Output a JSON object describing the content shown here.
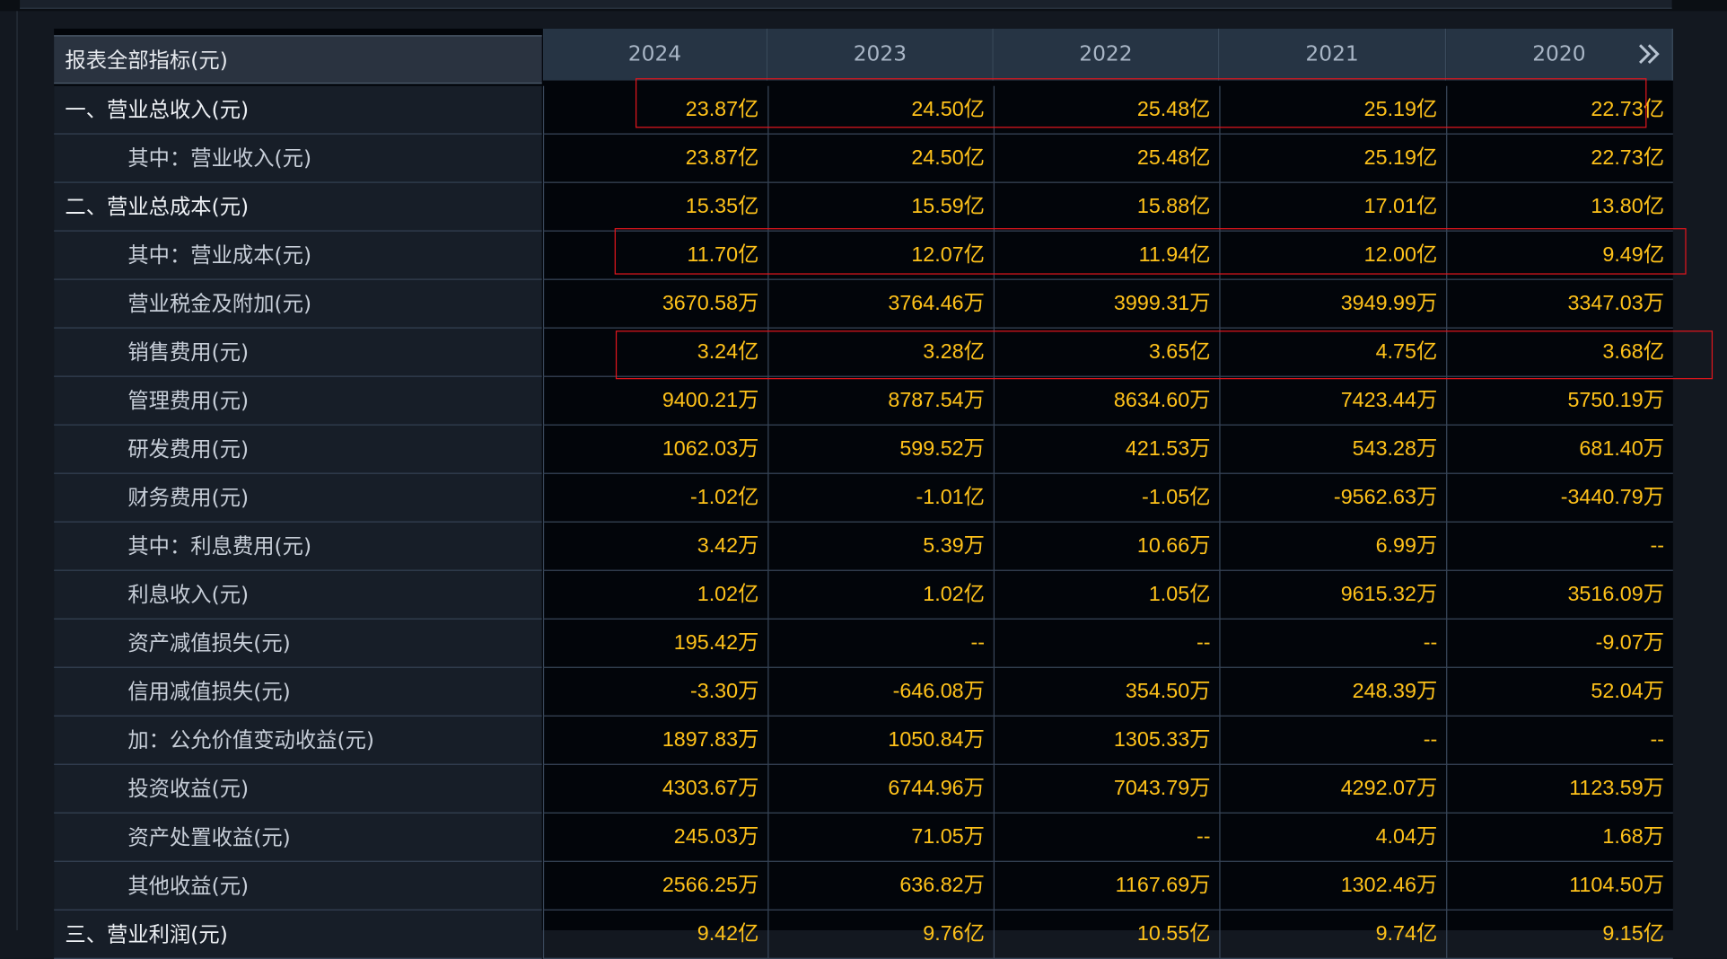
{
  "header": {
    "label": "报表全部指标(元)",
    "years": [
      "2024",
      "2023",
      "2022",
      "2021",
      "2020"
    ],
    "more_icon": "double-chevron-right-icon"
  },
  "rows": [
    {
      "label": "一、营业总收入(元)",
      "values": [
        "23.87亿",
        "24.50亿",
        "25.48亿",
        "25.19亿",
        "22.73亿"
      ]
    },
    {
      "label": "其中：营业收入(元)",
      "values": [
        "23.87亿",
        "24.50亿",
        "25.48亿",
        "25.19亿",
        "22.73亿"
      ]
    },
    {
      "label": "二、营业总成本(元)",
      "values": [
        "15.35亿",
        "15.59亿",
        "15.88亿",
        "17.01亿",
        "13.80亿"
      ]
    },
    {
      "label": "其中：营业成本(元)",
      "values": [
        "11.70亿",
        "12.07亿",
        "11.94亿",
        "12.00亿",
        "9.49亿"
      ]
    },
    {
      "label": "营业税金及附加(元)",
      "values": [
        "3670.58万",
        "3764.46万",
        "3999.31万",
        "3949.99万",
        "3347.03万"
      ]
    },
    {
      "label": "销售费用(元)",
      "values": [
        "3.24亿",
        "3.28亿",
        "3.65亿",
        "4.75亿",
        "3.68亿"
      ]
    },
    {
      "label": "管理费用(元)",
      "values": [
        "9400.21万",
        "8787.54万",
        "8634.60万",
        "7423.44万",
        "5750.19万"
      ]
    },
    {
      "label": "研发费用(元)",
      "values": [
        "1062.03万",
        "599.52万",
        "421.53万",
        "543.28万",
        "681.40万"
      ]
    },
    {
      "label": "财务费用(元)",
      "values": [
        "-1.02亿",
        "-1.01亿",
        "-1.05亿",
        "-9562.63万",
        "-3440.79万"
      ]
    },
    {
      "label": "其中：利息费用(元)",
      "values": [
        "3.42万",
        "5.39万",
        "10.66万",
        "6.99万",
        "--"
      ]
    },
    {
      "label": "利息收入(元)",
      "values": [
        "1.02亿",
        "1.02亿",
        "1.05亿",
        "9615.32万",
        "3516.09万"
      ]
    },
    {
      "label": "资产减值损失(元)",
      "values": [
        "195.42万",
        "--",
        "--",
        "--",
        "-9.07万"
      ]
    },
    {
      "label": "信用减值损失(元)",
      "values": [
        "-3.30万",
        "-646.08万",
        "354.50万",
        "248.39万",
        "52.04万"
      ]
    },
    {
      "label": "加：公允价值变动收益(元)",
      "values": [
        "1897.83万",
        "1050.84万",
        "1305.33万",
        "--",
        "--"
      ]
    },
    {
      "label": "投资收益(元)",
      "values": [
        "4303.67万",
        "6744.96万",
        "7043.79万",
        "4292.07万",
        "1123.59万"
      ]
    },
    {
      "label": "资产处置收益(元)",
      "values": [
        "245.03万",
        "71.05万",
        "--",
        "4.04万",
        "1.68万"
      ]
    },
    {
      "label": "其他收益(元)",
      "values": [
        "2566.25万",
        "636.82万",
        "1167.69万",
        "1302.46万",
        "1104.50万"
      ]
    },
    {
      "label": "三、营业利润(元)",
      "values": [
        "9.42亿",
        "9.76亿",
        "10.55亿",
        "9.74亿",
        "9.15亿"
      ]
    }
  ],
  "colors": {
    "value": "#ffc21a",
    "highlight": "#e0161d",
    "header_bg": "#263444",
    "row_label_bg": "#171e28"
  }
}
